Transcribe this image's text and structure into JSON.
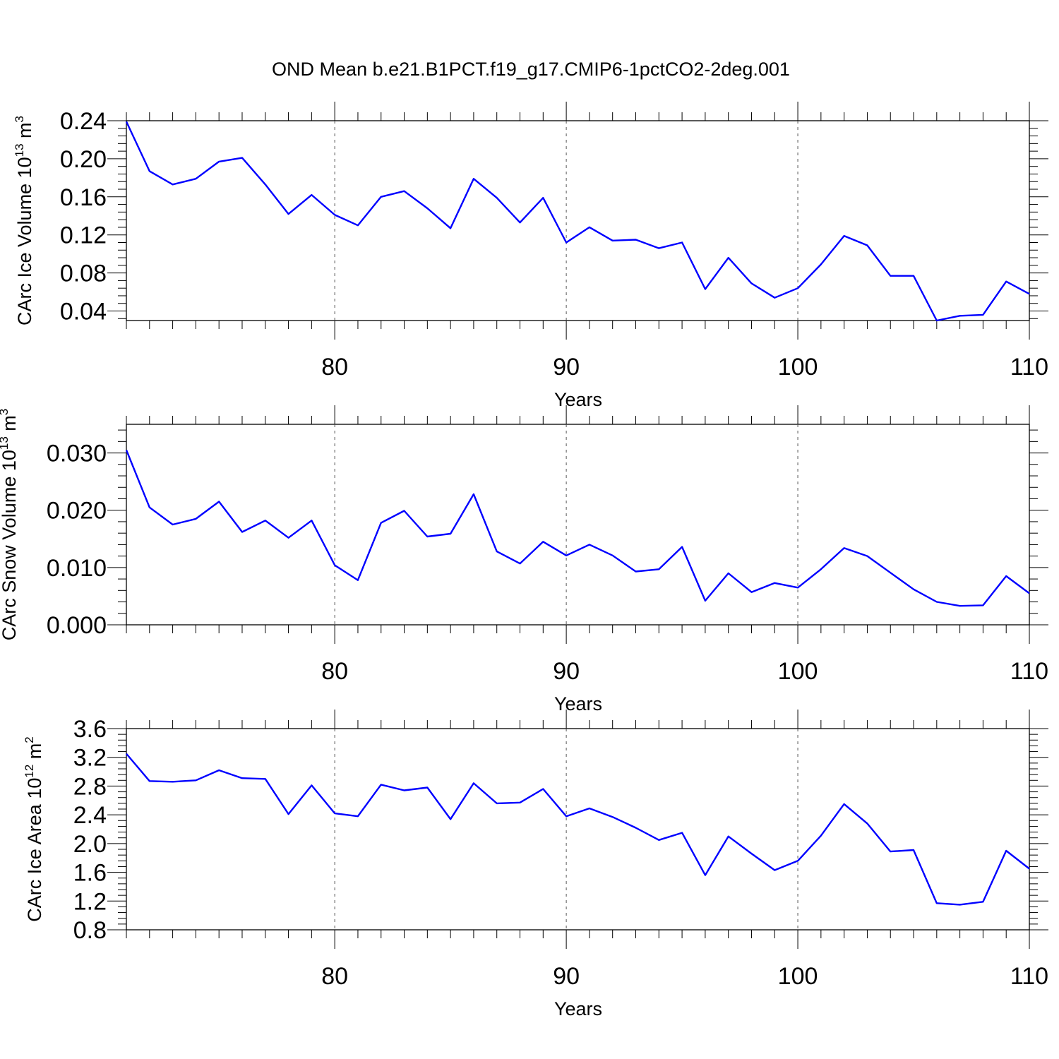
{
  "title": "OND Mean b.e21.B1PCT.f19_g17.CMIP6-1pctCO2-2deg.001",
  "line_color": "#0000ff",
  "chart_data": [
    {
      "type": "line",
      "title": "OND Mean b.e21.B1PCT.f19_g17.CMIP6-1pctCO2-2deg.001",
      "xlabel": "Years",
      "ylabel": {
        "prefix": "CArc Ice Volume 10",
        "exponent": "13",
        "unit": " m",
        "unit_exponent": "3"
      },
      "xlim": [
        71,
        110
      ],
      "ylim": [
        0.03,
        0.24
      ],
      "x_ticks": [
        80,
        90,
        100,
        110
      ],
      "x_tick_labels": [
        "80",
        "90",
        "100",
        "110"
      ],
      "y_ticks": [
        0.04,
        0.08,
        0.12,
        0.16,
        0.2,
        0.24
      ],
      "y_tick_labels": [
        "0.04",
        "0.08",
        "0.12",
        "0.16",
        "0.20",
        "0.24"
      ],
      "grid": "dashed vertical at major x ticks",
      "x": [
        71,
        72,
        73,
        74,
        75,
        76,
        77,
        78,
        79,
        80,
        81,
        82,
        83,
        84,
        85,
        86,
        87,
        88,
        89,
        90,
        91,
        92,
        93,
        94,
        95,
        96,
        97,
        98,
        99,
        100,
        101,
        102,
        103,
        104,
        105,
        106,
        107,
        108,
        109,
        110
      ],
      "y": [
        0.239,
        0.187,
        0.173,
        0.179,
        0.197,
        0.201,
        0.173,
        0.142,
        0.162,
        0.141,
        0.13,
        0.16,
        0.166,
        0.148,
        0.127,
        0.179,
        0.159,
        0.133,
        0.159,
        0.112,
        0.128,
        0.114,
        0.115,
        0.106,
        0.112,
        0.063,
        0.096,
        0.069,
        0.054,
        0.064,
        0.089,
        0.119,
        0.109,
        0.077,
        0.077,
        0.03,
        0.035,
        0.036,
        0.071,
        0.058
      ]
    },
    {
      "type": "line",
      "xlabel": "Years",
      "ylabel": {
        "prefix": "CArc Snow Volume 10",
        "exponent": "13",
        "unit": " m",
        "unit_exponent": "3"
      },
      "xlim": [
        71,
        110
      ],
      "ylim": [
        0.0,
        0.035
      ],
      "x_ticks": [
        80,
        90,
        100,
        110
      ],
      "x_tick_labels": [
        "80",
        "90",
        "100",
        "110"
      ],
      "y_ticks": [
        0.0,
        0.01,
        0.02,
        0.03
      ],
      "y_tick_labels": [
        "0.000",
        "0.010",
        "0.020",
        "0.030"
      ],
      "grid": "dashed vertical at major x ticks",
      "x": [
        71,
        72,
        73,
        74,
        75,
        76,
        77,
        78,
        79,
        80,
        81,
        82,
        83,
        84,
        85,
        86,
        87,
        88,
        89,
        90,
        91,
        92,
        93,
        94,
        95,
        96,
        97,
        98,
        99,
        100,
        101,
        102,
        103,
        104,
        105,
        106,
        107,
        108,
        109,
        110
      ],
      "y": [
        0.0305,
        0.0205,
        0.0175,
        0.0185,
        0.0215,
        0.0162,
        0.0182,
        0.0152,
        0.0182,
        0.0104,
        0.0078,
        0.0178,
        0.0199,
        0.0154,
        0.0159,
        0.0228,
        0.0128,
        0.0107,
        0.0145,
        0.0121,
        0.014,
        0.0121,
        0.0093,
        0.0097,
        0.0136,
        0.0042,
        0.009,
        0.0057,
        0.0073,
        0.0065,
        0.0097,
        0.0134,
        0.012,
        0.0091,
        0.0062,
        0.004,
        0.0033,
        0.0034,
        0.0085,
        0.0055
      ]
    },
    {
      "type": "line",
      "xlabel": "Years",
      "ylabel": {
        "prefix": "CArc Ice Area 10",
        "exponent": "12",
        "unit": " m",
        "unit_exponent": "2"
      },
      "xlim": [
        71,
        110
      ],
      "ylim": [
        0.8,
        3.6
      ],
      "x_ticks": [
        80,
        90,
        100,
        110
      ],
      "x_tick_labels": [
        "80",
        "90",
        "100",
        "110"
      ],
      "y_ticks": [
        0.8,
        1.2,
        1.6,
        2.0,
        2.4,
        2.8,
        3.2,
        3.6
      ],
      "y_tick_labels": [
        "0.8",
        "1.2",
        "1.6",
        "2.0",
        "2.4",
        "2.8",
        "3.2",
        "3.6"
      ],
      "grid": "dashed vertical at major x ticks",
      "x": [
        71,
        72,
        73,
        74,
        75,
        76,
        77,
        78,
        79,
        80,
        81,
        82,
        83,
        84,
        85,
        86,
        87,
        88,
        89,
        90,
        91,
        92,
        93,
        94,
        95,
        96,
        97,
        98,
        99,
        100,
        101,
        102,
        103,
        104,
        105,
        106,
        107,
        108,
        109,
        110
      ],
      "y": [
        3.25,
        2.87,
        2.86,
        2.88,
        3.02,
        2.91,
        2.9,
        2.41,
        2.81,
        2.42,
        2.38,
        2.82,
        2.74,
        2.78,
        2.34,
        2.84,
        2.56,
        2.57,
        2.76,
        2.38,
        2.49,
        2.37,
        2.22,
        2.05,
        2.15,
        1.56,
        2.1,
        1.86,
        1.63,
        1.76,
        2.11,
        2.55,
        2.28,
        1.89,
        1.91,
        1.17,
        1.15,
        1.19,
        1.9,
        1.65
      ]
    }
  ]
}
